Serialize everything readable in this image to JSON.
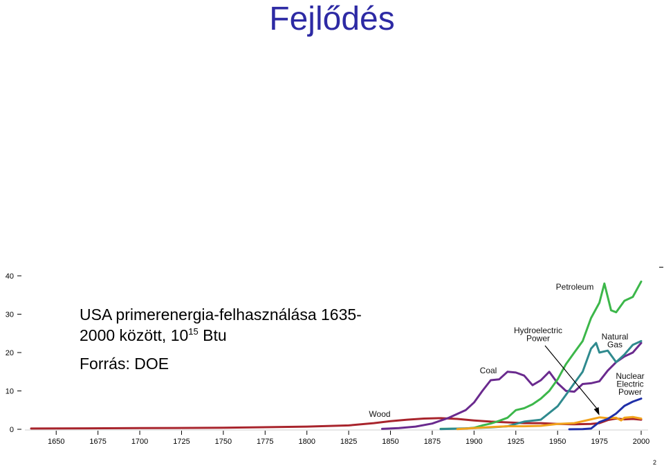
{
  "slide": {
    "title": "Fejlődés",
    "caption_line1": "USA primerenergia-felhasználása 1635-",
    "caption_line2_pre": "2000 között, 10",
    "caption_sup": "15",
    "caption_line2_post": " Btu",
    "source": "Forrás: DOE",
    "page_number": "2"
  },
  "chart_data": {
    "type": "line",
    "title": "",
    "xlabel": "",
    "ylabel": "",
    "xlim": [
      1635,
      2000
    ],
    "ylim": [
      0,
      40
    ],
    "x_ticks": [
      1650,
      1675,
      1700,
      1725,
      1750,
      1775,
      1800,
      1825,
      1850,
      1875,
      1900,
      1925,
      1950,
      1975,
      2000
    ],
    "y_ticks": [
      0,
      10,
      20,
      30,
      40
    ],
    "grid": false,
    "series": [
      {
        "name": "Wood",
        "color": "#a8242c",
        "points": [
          [
            1635,
            0.2
          ],
          [
            1700,
            0.3
          ],
          [
            1750,
            0.4
          ],
          [
            1800,
            0.7
          ],
          [
            1825,
            1.0
          ],
          [
            1840,
            1.6
          ],
          [
            1850,
            2.1
          ],
          [
            1860,
            2.5
          ],
          [
            1870,
            2.8
          ],
          [
            1880,
            2.9
          ],
          [
            1890,
            2.7
          ],
          [
            1900,
            2.3
          ],
          [
            1910,
            2.0
          ],
          [
            1920,
            1.8
          ],
          [
            1930,
            1.6
          ],
          [
            1940,
            1.6
          ],
          [
            1950,
            1.4
          ],
          [
            1960,
            1.3
          ],
          [
            1970,
            1.4
          ],
          [
            1975,
            1.6
          ],
          [
            1980,
            2.4
          ],
          [
            1985,
            2.8
          ],
          [
            1990,
            2.6
          ],
          [
            1995,
            2.7
          ],
          [
            2000,
            2.5
          ]
        ]
      },
      {
        "name": "Coal",
        "color": "#6a2a8e",
        "points": [
          [
            1845,
            0.1
          ],
          [
            1855,
            0.3
          ],
          [
            1865,
            0.7
          ],
          [
            1875,
            1.5
          ],
          [
            1885,
            3.0
          ],
          [
            1895,
            5.0
          ],
          [
            1900,
            7.0
          ],
          [
            1905,
            10.0
          ],
          [
            1910,
            12.8
          ],
          [
            1915,
            13.0
          ],
          [
            1920,
            15.0
          ],
          [
            1925,
            14.8
          ],
          [
            1930,
            14.0
          ],
          [
            1935,
            11.5
          ],
          [
            1940,
            12.8
          ],
          [
            1945,
            15.0
          ],
          [
            1950,
            12.0
          ],
          [
            1955,
            10.0
          ],
          [
            1960,
            9.8
          ],
          [
            1965,
            11.8
          ],
          [
            1970,
            12.0
          ],
          [
            1975,
            12.5
          ],
          [
            1980,
            15.3
          ],
          [
            1985,
            17.5
          ],
          [
            1990,
            19.0
          ],
          [
            1995,
            20.0
          ],
          [
            2000,
            22.5
          ]
        ]
      },
      {
        "name": "Petroleum",
        "color": "#3cb74a",
        "points": [
          [
            1880,
            0.1
          ],
          [
            1895,
            0.2
          ],
          [
            1900,
            0.4
          ],
          [
            1905,
            1.0
          ],
          [
            1910,
            1.5
          ],
          [
            1915,
            2.2
          ],
          [
            1920,
            3.0
          ],
          [
            1925,
            5.0
          ],
          [
            1930,
            5.5
          ],
          [
            1935,
            6.5
          ],
          [
            1940,
            8.0
          ],
          [
            1945,
            10.0
          ],
          [
            1950,
            13.0
          ],
          [
            1955,
            17.0
          ],
          [
            1960,
            20.0
          ],
          [
            1965,
            23.0
          ],
          [
            1970,
            29.0
          ],
          [
            1975,
            33.0
          ],
          [
            1978,
            38.0
          ],
          [
            1982,
            31.0
          ],
          [
            1985,
            30.5
          ],
          [
            1990,
            33.5
          ],
          [
            1995,
            34.5
          ],
          [
            2000,
            38.5
          ]
        ]
      },
      {
        "name": "Natural Gas",
        "color": "#2f8a8e",
        "points": [
          [
            1880,
            0.05
          ],
          [
            1900,
            0.3
          ],
          [
            1910,
            0.5
          ],
          [
            1920,
            0.8
          ],
          [
            1930,
            2.0
          ],
          [
            1940,
            2.5
          ],
          [
            1950,
            6.0
          ],
          [
            1955,
            9.0
          ],
          [
            1960,
            12.0
          ],
          [
            1965,
            15.0
          ],
          [
            1970,
            21.0
          ],
          [
            1973,
            22.5
          ],
          [
            1975,
            20.0
          ],
          [
            1980,
            20.5
          ],
          [
            1985,
            17.5
          ],
          [
            1990,
            19.5
          ],
          [
            1995,
            22.0
          ],
          [
            2000,
            23.0
          ]
        ]
      },
      {
        "name": "Hydroelectric Power",
        "color": "#f2a31c",
        "points": [
          [
            1890,
            0.05
          ],
          [
            1900,
            0.3
          ],
          [
            1910,
            0.6
          ],
          [
            1920,
            0.8
          ],
          [
            1930,
            0.8
          ],
          [
            1940,
            0.9
          ],
          [
            1950,
            1.4
          ],
          [
            1960,
            1.6
          ],
          [
            1970,
            2.6
          ],
          [
            1975,
            3.1
          ],
          [
            1980,
            2.9
          ],
          [
            1985,
            3.0
          ],
          [
            1988,
            2.3
          ],
          [
            1990,
            3.0
          ],
          [
            1995,
            3.2
          ],
          [
            2000,
            2.8
          ]
        ]
      },
      {
        "name": "Nuclear Electric Power",
        "color": "#1f2fa8",
        "points": [
          [
            1957,
            0.0
          ],
          [
            1965,
            0.05
          ],
          [
            1970,
            0.2
          ],
          [
            1975,
            1.9
          ],
          [
            1980,
            2.7
          ],
          [
            1985,
            4.1
          ],
          [
            1990,
            6.1
          ],
          [
            1995,
            7.2
          ],
          [
            2000,
            8.0
          ]
        ]
      }
    ],
    "annotations": [
      "Wood",
      "Coal",
      "Petroleum",
      "Hydroelectric Power",
      "Natural Gas",
      "Nuclear Electric Power"
    ]
  }
}
